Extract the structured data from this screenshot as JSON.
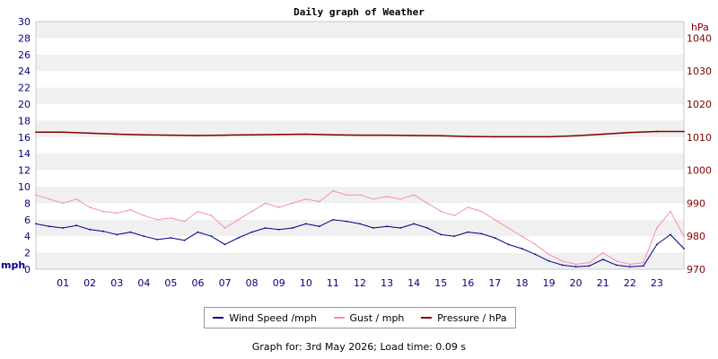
{
  "chart_data": {
    "type": "line",
    "title": "Daily graph of Weather",
    "left_axis": {
      "label": "mph",
      "ylim": [
        0,
        30
      ],
      "ticks": [
        "0",
        "2",
        "4",
        "6",
        "8",
        "10",
        "12",
        "14",
        "16",
        "18",
        "20",
        "22",
        "24",
        "26",
        "28",
        "30"
      ],
      "color": "#00008b"
    },
    "right_axis": {
      "label": "hPa",
      "ylim": [
        970,
        1045
      ],
      "ticks": [
        "970",
        "980",
        "990",
        "1000",
        "1010",
        "1020",
        "1030",
        "1040"
      ],
      "color": "#800000"
    },
    "x_axis": {
      "xlim": [
        0,
        24
      ],
      "ticks": [
        "01",
        "02",
        "03",
        "04",
        "05",
        "06",
        "07",
        "08",
        "09",
        "10",
        "11",
        "12",
        "13",
        "14",
        "15",
        "16",
        "17",
        "18",
        "19",
        "20",
        "21",
        "22",
        "23"
      ]
    },
    "grid": "horizontal alternating bands",
    "series": [
      {
        "name": "Wind Speed /mph",
        "color": "#00008b",
        "axis": "left",
        "x": [
          0,
          0.5,
          1,
          1.5,
          2,
          2.5,
          3,
          3.5,
          4,
          4.5,
          5,
          5.5,
          6,
          6.5,
          7,
          7.5,
          8,
          8.5,
          9,
          9.5,
          10,
          10.5,
          11,
          11.5,
          12,
          12.5,
          13,
          13.5,
          14,
          14.5,
          15,
          15.5,
          16,
          16.5,
          17,
          17.5,
          18,
          18.5,
          19,
          19.5,
          20,
          20.5,
          21,
          21.5,
          22,
          22.5,
          23,
          23.5,
          24
        ],
        "values": [
          5.5,
          5.2,
          5.0,
          5.3,
          4.8,
          4.6,
          4.2,
          4.5,
          4.0,
          3.6,
          3.8,
          3.5,
          4.5,
          4.0,
          3.0,
          3.8,
          4.5,
          5.0,
          4.8,
          5.0,
          5.5,
          5.2,
          6.0,
          5.8,
          5.5,
          5.0,
          5.2,
          5.0,
          5.5,
          5.0,
          4.2,
          4.0,
          4.5,
          4.3,
          3.8,
          3.0,
          2.5,
          1.8,
          1.0,
          0.5,
          0.3,
          0.4,
          1.2,
          0.5,
          0.3,
          0.4,
          3.0,
          4.2,
          2.5
        ]
      },
      {
        "name": "Gust / mph",
        "color": "#f78fb3",
        "axis": "left",
        "x": [
          0,
          0.5,
          1,
          1.5,
          2,
          2.5,
          3,
          3.5,
          4,
          4.5,
          5,
          5.5,
          6,
          6.5,
          7,
          7.5,
          8,
          8.5,
          9,
          9.5,
          10,
          10.5,
          11,
          11.5,
          12,
          12.5,
          13,
          13.5,
          14,
          14.5,
          15,
          15.5,
          16,
          16.5,
          17,
          17.5,
          18,
          18.5,
          19,
          19.5,
          20,
          20.5,
          21,
          21.5,
          22,
          22.5,
          23,
          23.5,
          24
        ],
        "values": [
          9.0,
          8.5,
          8.0,
          8.5,
          7.5,
          7.0,
          6.8,
          7.2,
          6.5,
          6.0,
          6.2,
          5.8,
          7.0,
          6.5,
          5.0,
          6.0,
          7.0,
          8.0,
          7.5,
          8.0,
          8.5,
          8.2,
          9.5,
          9.0,
          9.0,
          8.5,
          8.8,
          8.5,
          9.0,
          8.0,
          7.0,
          6.5,
          7.5,
          7.0,
          6.0,
          5.0,
          4.0,
          3.0,
          1.8,
          1.0,
          0.6,
          0.8,
          2.0,
          1.0,
          0.6,
          0.8,
          5.0,
          7.0,
          4.0
        ]
      },
      {
        "name": "Pressure / hPa",
        "color": "#800000",
        "axis": "right",
        "x": [
          0,
          1,
          2,
          3,
          4,
          5,
          6,
          7,
          8,
          9,
          10,
          11,
          12,
          13,
          14,
          15,
          16,
          17,
          18,
          19,
          20,
          21,
          22,
          23,
          24
        ],
        "values": [
          1011.5,
          1011.5,
          1011.2,
          1010.9,
          1010.7,
          1010.6,
          1010.5,
          1010.6,
          1010.7,
          1010.8,
          1010.9,
          1010.7,
          1010.6,
          1010.6,
          1010.5,
          1010.4,
          1010.2,
          1010.1,
          1010.1,
          1010.1,
          1010.4,
          1010.9,
          1011.4,
          1011.7,
          1011.7
        ]
      }
    ]
  },
  "legend": [
    {
      "label": "Wind Speed /mph",
      "color": "#00008b"
    },
    {
      "label": "Gust / mph",
      "color": "#f78fb3"
    },
    {
      "label": "Pressure / hPa",
      "color": "#800000"
    }
  ],
  "footer": "Graph for: 3rd May 2026; Load time: 0.09 s"
}
